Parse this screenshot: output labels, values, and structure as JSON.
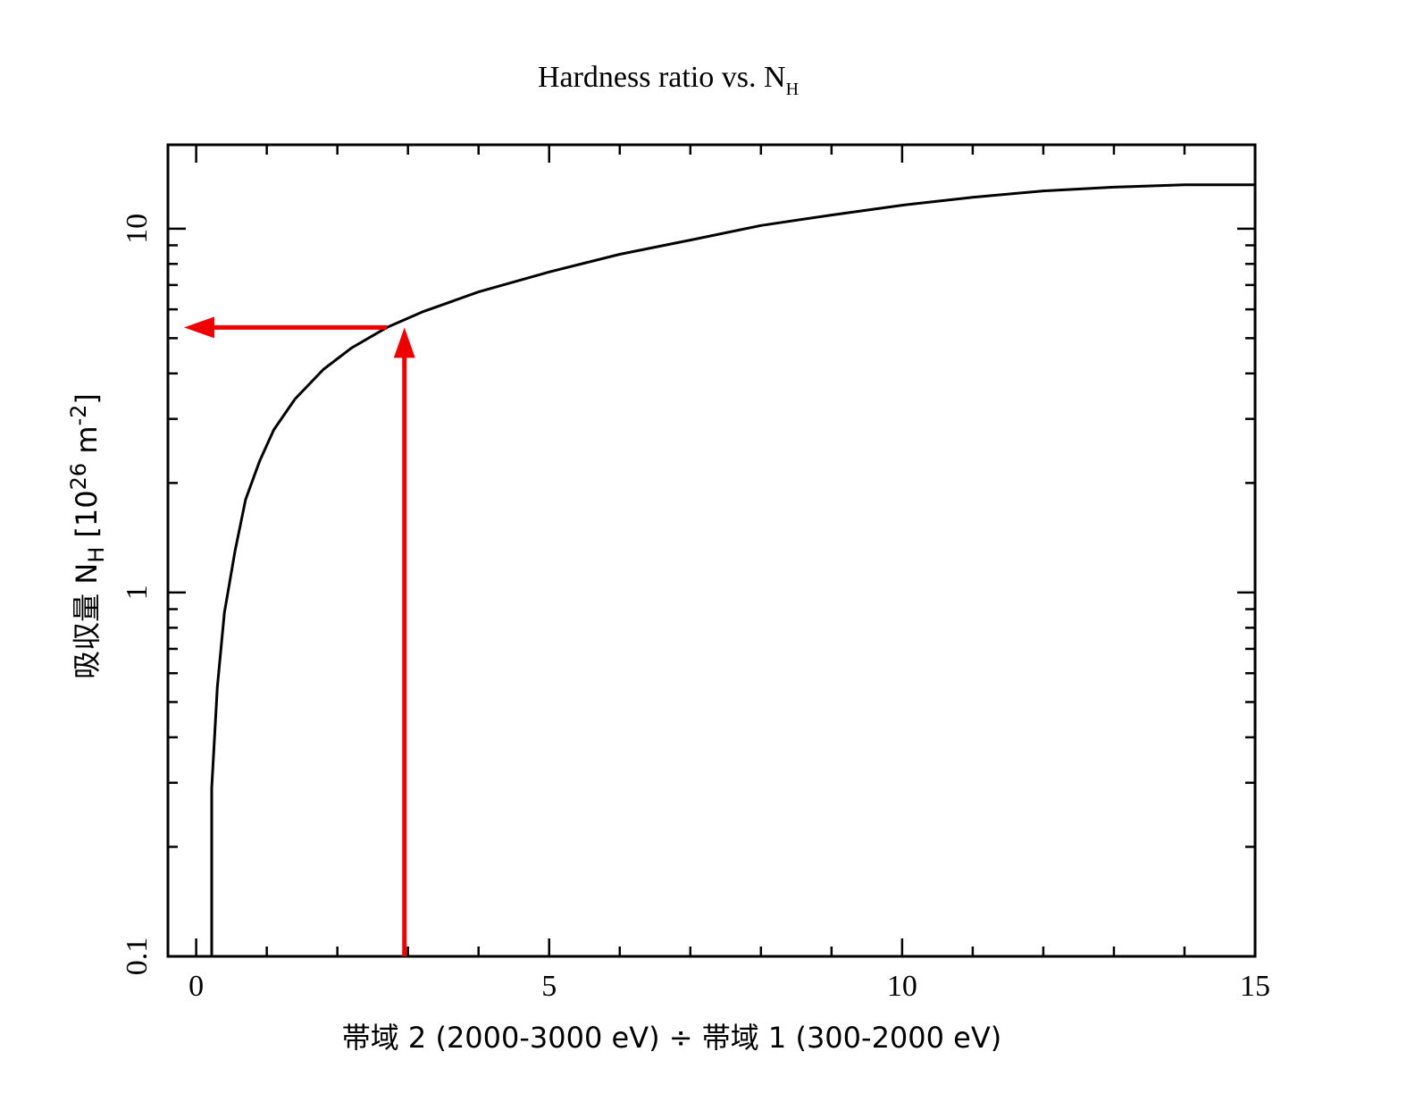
{
  "chart_data": {
    "type": "line",
    "title": "Hardness ratio vs. N",
    "title_subscript": "H",
    "xlabel": "帯域 2 (2000-3000 eV) ÷ 帯域 1 (300-2000 eV)",
    "ylabel_prefix": "吸収量 N",
    "ylabel_subscript": "H",
    "ylabel_unit_open": " [10",
    "ylabel_unit_exp": "26",
    "ylabel_unit_m": " m",
    "ylabel_unit_mexp": "-2",
    "ylabel_unit_close": "]",
    "xlim": [
      -0.4,
      15
    ],
    "ylim": [
      0.1,
      17
    ],
    "yscale": "log",
    "grid": false,
    "x_ticks": [
      0,
      5,
      10,
      15
    ],
    "x_tick_labels": [
      "0",
      "5",
      "10",
      "15"
    ],
    "y_ticks": [
      0.1,
      1,
      10
    ],
    "y_tick_labels": [
      "0.1",
      "1",
      "10"
    ],
    "colors": {
      "curve": "#000000",
      "arrow": "#ee0000"
    },
    "series": [
      {
        "x": [
          0.22,
          0.22,
          0.3,
          0.4,
          0.55,
          0.7,
          0.9,
          1.1,
          1.4,
          1.8,
          2.2,
          2.7,
          3.2,
          4.0,
          5.0,
          6.0,
          7.0,
          8.0,
          9.0,
          10.0,
          11.0,
          12.0,
          13.0,
          14.0,
          15.0
        ],
        "y": [
          0.1,
          0.29,
          0.55,
          0.88,
          1.3,
          1.8,
          2.3,
          2.8,
          3.4,
          4.1,
          4.7,
          5.35,
          5.9,
          6.7,
          7.6,
          8.5,
          9.3,
          10.2,
          10.9,
          11.6,
          12.2,
          12.7,
          13.0,
          13.2,
          13.2
        ]
      }
    ],
    "annotations": {
      "vertical_arrow": {
        "x": 2.95,
        "y_from": 0.1,
        "y_to": 5.35
      },
      "horizontal_arrow": {
        "y": 5.35,
        "x_from": 2.7,
        "x_to": -0.4
      }
    }
  }
}
